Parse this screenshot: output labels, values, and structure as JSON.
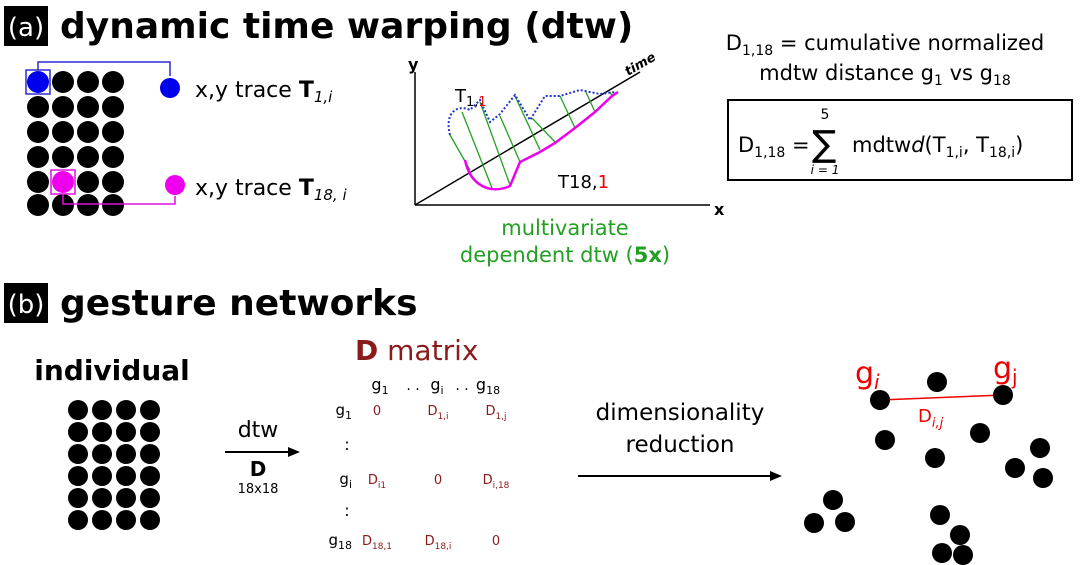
{
  "panel_a": {
    "label": "(a)",
    "title": "dynamic time warping (dtw)",
    "trace1": {
      "prefix": "x,y trace ",
      "symbol": "T",
      "sub": "1,i"
    },
    "trace18": {
      "prefix": "x,y trace ",
      "symbol": "T",
      "sub": "18, i"
    },
    "plot": {
      "y_axis": "y",
      "x_axis": "x",
      "time_axis": "time",
      "series1": {
        "symbol": "T",
        "sub": "1,",
        "index": "1"
      },
      "series18": {
        "symbol": "T18,",
        "index": "1"
      },
      "caption_line1": "multivariate",
      "caption_line2": "dependent dtw (",
      "caption_bold": "5x",
      "caption_end": ")"
    },
    "definition": {
      "line1": {
        "symbol": "D",
        "sub": "1,18",
        "rest": " = cumulative normalized"
      },
      "line2": {
        "text": "mdtw distance g",
        "sub1": "1",
        "vs": " vs g",
        "sub2": "18"
      }
    },
    "formula": {
      "symbol": "D",
      "sub": "1,18",
      "equals": " =",
      "sum": "∑",
      "upper": "5",
      "lower": "i = 1",
      "func": "mdtw",
      "func_italic": "d",
      "open": "(T",
      "sub_a": "1,i",
      "comma": ", T",
      "sub_b": "18,i",
      "close": ")"
    }
  },
  "panel_b": {
    "label": "(b)",
    "title": "gesture networks",
    "individual": "individual",
    "arrow": {
      "label": "dtw",
      "symbol": "D",
      "size": "18x18"
    },
    "matrix": {
      "title_bold": "D",
      "title_rest": " matrix",
      "columns": [
        {
          "g": "g",
          "sub": "1"
        },
        ". .",
        {
          "g": "g",
          "sub": "i"
        },
        ". .",
        {
          "g": "g",
          "sub": "18"
        }
      ],
      "rows": [
        {
          "g": "g",
          "sub": "1",
          "cells": [
            {
              "v": "0"
            },
            {
              "v": "D",
              "sub": "1,i"
            },
            {
              "v": "D",
              "sub": "1,j"
            }
          ]
        },
        {
          "dots": ":"
        },
        {
          "g": "g",
          "sub": "i",
          "cells": [
            {
              "v": "D",
              "sub": "i1"
            },
            {
              "v": "0"
            },
            {
              "v": "D",
              "sub": "i,18"
            }
          ]
        },
        {
          "dots": ":"
        },
        {
          "g": "g",
          "sub": "18",
          "cells": [
            {
              "v": "D",
              "sub": "18,1"
            },
            {
              "v": "D",
              "sub": "18,i"
            },
            {
              "v": "0"
            }
          ]
        }
      ]
    },
    "reduction": {
      "line1": "dimensionality",
      "line2": "reduction"
    },
    "network": {
      "gi": {
        "g": "g",
        "sub": "i"
      },
      "gj": {
        "g": "g",
        "sub": "j"
      },
      "edge": {
        "symbol": "D",
        "sub": "i,j"
      }
    }
  }
}
